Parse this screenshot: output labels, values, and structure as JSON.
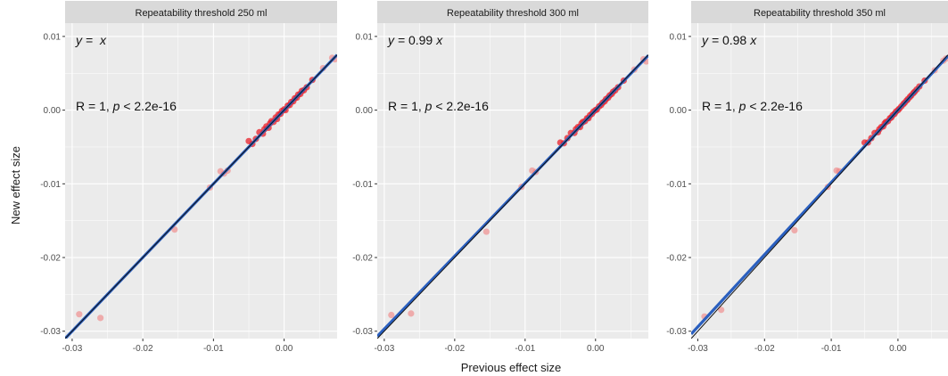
{
  "chart_data": {
    "type": "scatter",
    "xlabel": "Previous effect size",
    "ylabel": "New effect size",
    "xlim": [
      -0.031,
      0.0075
    ],
    "ylim": [
      -0.031,
      0.0118
    ],
    "x_ticks": [
      -0.03,
      -0.02,
      -0.01,
      0.0
    ],
    "x_tick_labels": [
      "-0.03",
      "-0.02",
      "-0.01",
      "0.00"
    ],
    "y_ticks": [
      -0.03,
      -0.02,
      -0.01,
      0.0,
      0.01
    ],
    "y_tick_labels": [
      "-0.03",
      "-0.02",
      "-0.01",
      "0.00",
      "0.01"
    ],
    "grid": true,
    "identity_line": true,
    "colors": {
      "points": "#f08080",
      "dense_points": "#e8202a",
      "fit_line": "#2a5fbf",
      "identity_line": "#111111",
      "panel_bg": "#ebebeb",
      "strip_bg": "#d9d9d9",
      "grid": "#ffffff"
    },
    "panels": [
      {
        "strip": "Repeatability threshold 250 ml",
        "equation": {
          "lhs": "y = ",
          "slope": "",
          "var": "x"
        },
        "stat": {
          "r": "R = 1, ",
          "p_symbol": "p",
          "p_value": " < 2.2e-16"
        },
        "slope": 1.0,
        "points": [
          [
            -0.029,
            -0.0277
          ],
          [
            -0.026,
            -0.0282
          ],
          [
            -0.0155,
            -0.0162
          ],
          [
            -0.0105,
            -0.0105
          ],
          [
            -0.009,
            -0.0083
          ],
          [
            -0.0085,
            -0.0086
          ],
          [
            -0.008,
            -0.0082
          ],
          [
            -0.005,
            -0.0042
          ],
          [
            -0.0045,
            -0.0046
          ],
          [
            -0.004,
            -0.0039
          ],
          [
            -0.0035,
            -0.003
          ],
          [
            -0.003,
            -0.0032
          ],
          [
            -0.0028,
            -0.0026
          ],
          [
            -0.0025,
            -0.0022
          ],
          [
            -0.0022,
            -0.0024
          ],
          [
            -0.002,
            -0.0018
          ],
          [
            -0.0018,
            -0.0015
          ],
          [
            -0.0015,
            -0.0016
          ],
          [
            -0.0012,
            -0.001
          ],
          [
            -0.001,
            -0.0012
          ],
          [
            -0.0008,
            -0.0006
          ],
          [
            -0.0005,
            -0.0005
          ],
          [
            -0.0003,
            -0.0001
          ],
          [
            0.0,
            0.0001
          ],
          [
            0.0002,
            0.0
          ],
          [
            0.0005,
            0.0006
          ],
          [
            0.0008,
            0.0007
          ],
          [
            0.001,
            0.0011
          ],
          [
            0.0013,
            0.0012
          ],
          [
            0.0015,
            0.0016
          ],
          [
            0.0018,
            0.0017
          ],
          [
            0.002,
            0.0021
          ],
          [
            0.0023,
            0.0022
          ],
          [
            0.0025,
            0.0026
          ],
          [
            0.0028,
            0.0027
          ],
          [
            0.0032,
            0.0031
          ],
          [
            0.004,
            0.0041
          ],
          [
            0.0055,
            0.0057
          ],
          [
            0.0068,
            0.0071
          ],
          [
            0.0072,
            0.0069
          ]
        ]
      },
      {
        "strip": "Repeatability threshold 300 ml",
        "equation": {
          "lhs": "y = ",
          "slope": "0.99",
          "var": "x"
        },
        "stat": {
          "r": "R = 1, ",
          "p_symbol": "p",
          "p_value": " < 2.2e-16"
        },
        "slope": 0.99,
        "points": [
          [
            -0.029,
            -0.0278
          ],
          [
            -0.0262,
            -0.0276
          ],
          [
            -0.0155,
            -0.0165
          ],
          [
            -0.0105,
            -0.0104
          ],
          [
            -0.009,
            -0.0082
          ],
          [
            -0.0085,
            -0.0084
          ],
          [
            -0.005,
            -0.0044
          ],
          [
            -0.0045,
            -0.0045
          ],
          [
            -0.004,
            -0.0038
          ],
          [
            -0.0035,
            -0.0031
          ],
          [
            -0.003,
            -0.0031
          ],
          [
            -0.0028,
            -0.0026
          ],
          [
            -0.0025,
            -0.0023
          ],
          [
            -0.0022,
            -0.0023
          ],
          [
            -0.002,
            -0.0018
          ],
          [
            -0.0018,
            -0.0016
          ],
          [
            -0.0015,
            -0.0015
          ],
          [
            -0.0012,
            -0.0011
          ],
          [
            -0.001,
            -0.0011
          ],
          [
            -0.0008,
            -0.0007
          ],
          [
            -0.0005,
            -0.0005
          ],
          [
            -0.0003,
            -0.0002
          ],
          [
            0.0,
            0.0
          ],
          [
            0.0002,
            0.0001
          ],
          [
            0.0005,
            0.0005
          ],
          [
            0.0008,
            0.0007
          ],
          [
            0.001,
            0.001
          ],
          [
            0.0013,
            0.0012
          ],
          [
            0.0015,
            0.0015
          ],
          [
            0.0018,
            0.0017
          ],
          [
            0.002,
            0.002
          ],
          [
            0.0023,
            0.0022
          ],
          [
            0.0025,
            0.0025
          ],
          [
            0.0028,
            0.0027
          ],
          [
            0.0032,
            0.0031
          ],
          [
            0.004,
            0.004
          ],
          [
            0.0055,
            0.0055
          ],
          [
            0.0068,
            0.0069
          ],
          [
            0.0072,
            0.0066
          ]
        ]
      },
      {
        "strip": "Repeatability threshold 350 ml",
        "equation": {
          "lhs": "y = ",
          "slope": "0.98",
          "var": "x"
        },
        "stat": {
          "r": "R = 1, ",
          "p_symbol": "p",
          "p_value": " < 2.2e-16"
        },
        "slope": 0.98,
        "points": [
          [
            -0.029,
            -0.028
          ],
          [
            -0.0265,
            -0.0271
          ],
          [
            -0.0155,
            -0.0163
          ],
          [
            -0.0105,
            -0.0104
          ],
          [
            -0.0092,
            -0.0082
          ],
          [
            -0.0088,
            -0.0083
          ],
          [
            -0.005,
            -0.0044
          ],
          [
            -0.0045,
            -0.0044
          ],
          [
            -0.004,
            -0.0038
          ],
          [
            -0.0035,
            -0.0031
          ],
          [
            -0.003,
            -0.003
          ],
          [
            -0.0028,
            -0.0026
          ],
          [
            -0.0025,
            -0.0023
          ],
          [
            -0.0022,
            -0.0022
          ],
          [
            -0.002,
            -0.0018
          ],
          [
            -0.0018,
            -0.0016
          ],
          [
            -0.0015,
            -0.0015
          ],
          [
            -0.0012,
            -0.0011
          ],
          [
            -0.001,
            -0.001
          ],
          [
            -0.0008,
            -0.0007
          ],
          [
            -0.0005,
            -0.0005
          ],
          [
            -0.0003,
            -0.0002
          ],
          [
            0.0,
            0.0
          ],
          [
            0.0002,
            0.0002
          ],
          [
            0.0005,
            0.0005
          ],
          [
            0.0008,
            0.0008
          ],
          [
            0.001,
            0.001
          ],
          [
            0.0013,
            0.0013
          ],
          [
            0.0015,
            0.0015
          ],
          [
            0.0018,
            0.0018
          ],
          [
            0.002,
            0.002
          ],
          [
            0.0023,
            0.0023
          ],
          [
            0.0025,
            0.0025
          ],
          [
            0.0028,
            0.0028
          ],
          [
            0.0032,
            0.0032
          ],
          [
            0.004,
            0.004
          ],
          [
            0.0055,
            0.0054
          ],
          [
            0.0068,
            0.0067
          ],
          [
            0.0072,
            0.007
          ]
        ]
      }
    ]
  }
}
